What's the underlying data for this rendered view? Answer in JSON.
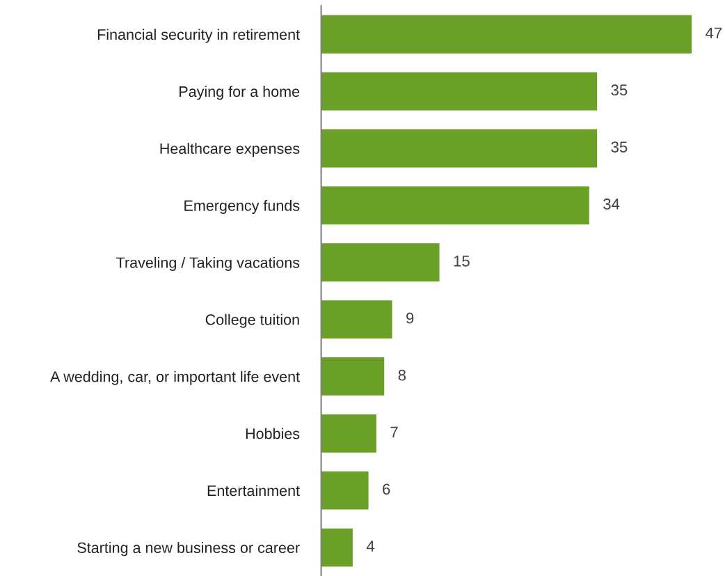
{
  "chart_data": {
    "type": "bar",
    "orientation": "horizontal",
    "categories": [
      "Financial security in retirement",
      "Paying for a home",
      "Healthcare expenses",
      "Emergency funds",
      "Traveling / Taking vacations",
      "College tuition",
      "A wedding, car, or important life event",
      "Hobbies",
      "Entertainment",
      "Starting a new business or career"
    ],
    "values": [
      47,
      35,
      35,
      34,
      15,
      9,
      8,
      7,
      6,
      4
    ],
    "color": "#6a9f28",
    "data_labels": true,
    "tick_labels": "y",
    "grid": false,
    "legend": false
  }
}
